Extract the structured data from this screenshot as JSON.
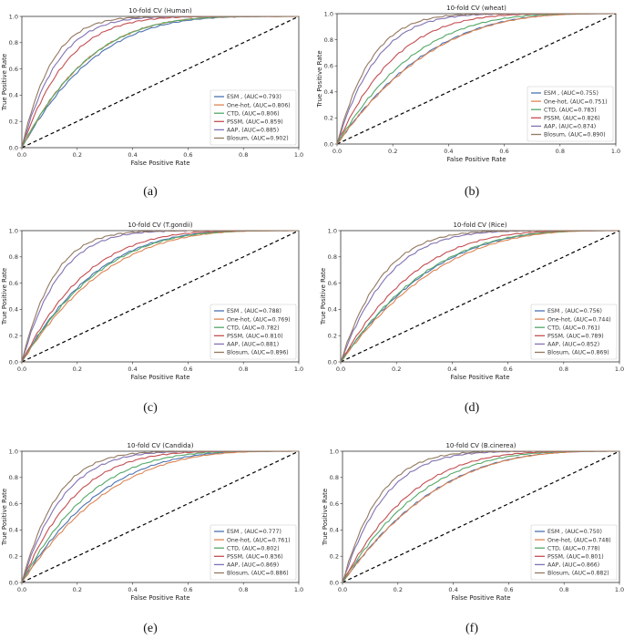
{
  "colors": {
    "ESM": "#4c72b0",
    "One-hot": "#dd8452",
    "CTD": "#55a868",
    "PSSM": "#c44e52",
    "AAP": "#8172b3",
    "Blosum": "#937860",
    "diagonal": "#000000"
  },
  "chart_data": [
    {
      "type": "line",
      "caption": "(a)",
      "title": "10-fold CV (Human)",
      "xlabel": "False Positive Rate",
      "ylabel": "True Positive Rate",
      "xlim": [
        0,
        1
      ],
      "ylim": [
        0,
        1
      ],
      "xticks": [
        "0.0",
        "0.2",
        "0.4",
        "0.6",
        "0.8",
        "1.0"
      ],
      "yticks": [
        "0.0",
        "0.2",
        "0.4",
        "0.6",
        "0.8",
        "1.0"
      ],
      "grid": false,
      "legend": "lower-right",
      "series": [
        {
          "name": "ESM",
          "legend": "ESM , (AUC=0.793)",
          "auc": 0.793
        },
        {
          "name": "One-hot",
          "legend": "One-hot, (AUC=0.806)",
          "auc": 0.806
        },
        {
          "name": "CTD",
          "legend": "CTD, (AUC=0.806)",
          "auc": 0.806
        },
        {
          "name": "PSSM",
          "legend": "PSSM, (AUC=0.859)",
          "auc": 0.859
        },
        {
          "name": "AAP",
          "legend": "AAP, (AUC=0.885)",
          "auc": 0.885
        },
        {
          "name": "Blosum",
          "legend": "Blosum, (AUC=0.902)",
          "auc": 0.902
        }
      ]
    },
    {
      "type": "line",
      "caption": "(b)",
      "title": "10-fold CV (wheat)",
      "xlabel": "False Positive Rate",
      "ylabel": "True Positive Rate",
      "xlim": [
        0,
        1
      ],
      "ylim": [
        0,
        1
      ],
      "xticks": [
        "0.0",
        "0.2",
        "0.4",
        "0.6",
        "0.8",
        "1.0"
      ],
      "yticks": [
        "0.0",
        "0.2",
        "0.4",
        "0.6",
        "0.8",
        "1.0"
      ],
      "grid": false,
      "legend": "lower-right",
      "series": [
        {
          "name": "ESM",
          "legend": "ESM , (AUC=0.755)",
          "auc": 0.755
        },
        {
          "name": "One-hot",
          "legend": "One-hot, (AUC=0.751)",
          "auc": 0.751
        },
        {
          "name": "CTD",
          "legend": "CTD, (AUC=0.783)",
          "auc": 0.783
        },
        {
          "name": "PSSM",
          "legend": "PSSM, (AUC=0.826)",
          "auc": 0.826
        },
        {
          "name": "AAP",
          "legend": "AAP, (AUC=0.874)",
          "auc": 0.874
        },
        {
          "name": "Blosum",
          "legend": "Blosum, (AUC=0.890)",
          "auc": 0.89
        }
      ]
    },
    {
      "type": "line",
      "caption": "(c)",
      "title": "10-fold CV (T.gondii)",
      "xlabel": "False Positive Rate",
      "ylabel": "True Positive Rate",
      "xlim": [
        0,
        1
      ],
      "ylim": [
        0,
        1
      ],
      "xticks": [
        "0.0",
        "0.2",
        "0.4",
        "0.6",
        "0.8",
        "1.0"
      ],
      "yticks": [
        "0.0",
        "0.2",
        "0.4",
        "0.6",
        "0.8",
        "1.0"
      ],
      "grid": false,
      "legend": "lower-right",
      "series": [
        {
          "name": "ESM",
          "legend": "ESM , (AUC=0.788)",
          "auc": 0.788
        },
        {
          "name": "One-hot",
          "legend": "One-hot, (AUC=0.769)",
          "auc": 0.769
        },
        {
          "name": "CTD",
          "legend": "CTD, (AUC=0.782)",
          "auc": 0.782
        },
        {
          "name": "PSSM",
          "legend": "PSSM, (AUC=0.810)",
          "auc": 0.81
        },
        {
          "name": "AAP",
          "legend": "AAP, (AUC=0.881)",
          "auc": 0.881
        },
        {
          "name": "Blosum",
          "legend": "Blosum, (AUC=0.896)",
          "auc": 0.896
        }
      ]
    },
    {
      "type": "line",
      "caption": "(d)",
      "title": "10-fold CV (Rice)",
      "xlabel": "False Positive Rate",
      "ylabel": "True Positive Rate",
      "xlim": [
        0,
        1
      ],
      "ylim": [
        0,
        1
      ],
      "xticks": [
        "0.0",
        "0.2",
        "0.4",
        "0.6",
        "0.8",
        "1.0"
      ],
      "yticks": [
        "0.0",
        "0.2",
        "0.4",
        "0.6",
        "0.8",
        "1.0"
      ],
      "grid": false,
      "legend": "lower-right",
      "series": [
        {
          "name": "ESM",
          "legend": "ESM , (AUC=0.756)",
          "auc": 0.756
        },
        {
          "name": "One-hot",
          "legend": "One-hot, (AUC=0.744)",
          "auc": 0.744
        },
        {
          "name": "CTD",
          "legend": "CTD, (AUC=0.761)",
          "auc": 0.761
        },
        {
          "name": "PSSM",
          "legend": "PSSM, (AUC=0.789)",
          "auc": 0.789
        },
        {
          "name": "AAP",
          "legend": "AAP, (AUC=0.852)",
          "auc": 0.852
        },
        {
          "name": "Blosum",
          "legend": "Blosum, (AUC=0.869)",
          "auc": 0.869
        }
      ]
    },
    {
      "type": "line",
      "caption": "(e)",
      "title": "10-fold CV (Candida)",
      "xlabel": "False Positive Rate",
      "ylabel": "True Positive Rate",
      "xlim": [
        0,
        1
      ],
      "ylim": [
        0,
        1
      ],
      "xticks": [
        "0.0",
        "0.2",
        "0.4",
        "0.6",
        "0.8",
        "1.0"
      ],
      "yticks": [
        "0.0",
        "0.2",
        "0.4",
        "0.6",
        "0.8",
        "1.0"
      ],
      "grid": false,
      "legend": "lower-right",
      "series": [
        {
          "name": "ESM",
          "legend": "ESM , (AUC=0.777)",
          "auc": 0.777
        },
        {
          "name": "One-hot",
          "legend": "One-hot, (AUC=0.761)",
          "auc": 0.761
        },
        {
          "name": "CTD",
          "legend": "CTD, (AUC=0.802)",
          "auc": 0.802
        },
        {
          "name": "PSSM",
          "legend": "PSSM, (AUC=0.836)",
          "auc": 0.836
        },
        {
          "name": "AAP",
          "legend": "AAP, (AUC=0.869)",
          "auc": 0.869
        },
        {
          "name": "Blosum",
          "legend": "Blosum, (AUC=0.886)",
          "auc": 0.886
        }
      ]
    },
    {
      "type": "line",
      "caption": "(f)",
      "title": "10-fold CV (B.cinerea)",
      "xlabel": "False Positive Rate",
      "ylabel": "True Positive Rate",
      "xlim": [
        0,
        1
      ],
      "ylim": [
        0,
        1
      ],
      "xticks": [
        "0.0",
        "0.2",
        "0.4",
        "0.6",
        "0.8",
        "1.0"
      ],
      "yticks": [
        "0.0",
        "0.2",
        "0.4",
        "0.6",
        "0.8",
        "1.0"
      ],
      "grid": false,
      "legend": "lower-right",
      "series": [
        {
          "name": "ESM",
          "legend": "ESM , (AUC=0.750)",
          "auc": 0.75
        },
        {
          "name": "One-hot",
          "legend": "One-hot, (AUC=0.748)",
          "auc": 0.748
        },
        {
          "name": "CTD",
          "legend": "CTD, (AUC=0.778)",
          "auc": 0.778
        },
        {
          "name": "PSSM",
          "legend": "PSSM, (AUC=0.801)",
          "auc": 0.801
        },
        {
          "name": "AAP",
          "legend": "AAP, (AUC=0.866)",
          "auc": 0.866
        },
        {
          "name": "Blosum",
          "legend": "Blosum, (AUC=0.882)",
          "auc": 0.882
        }
      ]
    }
  ]
}
